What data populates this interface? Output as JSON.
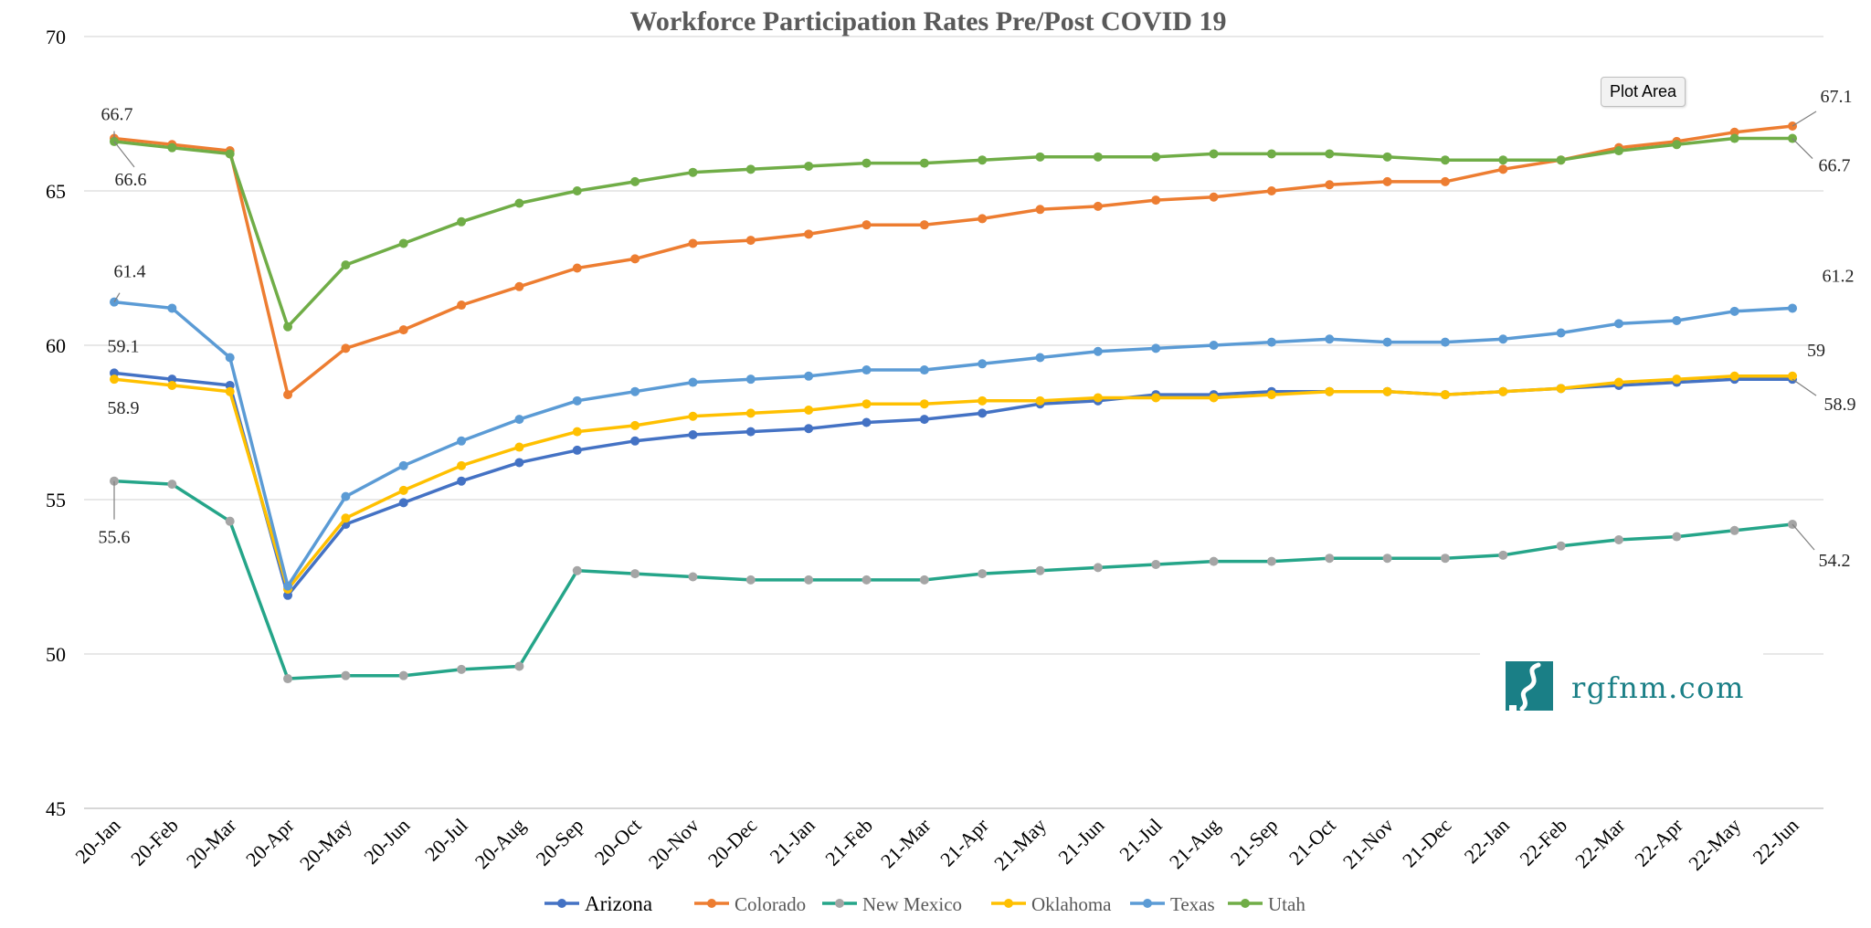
{
  "chart_data": {
    "type": "line",
    "title": "Workforce Participation Rates Pre/Post COVID 19",
    "xlabel": "",
    "ylabel": "",
    "ylim": [
      45,
      70
    ],
    "yticks": [
      "45",
      "50",
      "55",
      "60",
      "65",
      "70"
    ],
    "grid": true,
    "legend_position": "bottom",
    "categories": [
      "20-Jan",
      "20-Feb",
      "20-Mar",
      "20-Apr",
      "20-May",
      "20-Jun",
      "20-Jul",
      "20-Aug",
      "20-Sep",
      "20-Oct",
      "20-Nov",
      "20-Dec",
      "21-Jan",
      "21-Feb",
      "21-Mar",
      "21-Apr",
      "21-May",
      "21-Jun",
      "21-Jul",
      "21-Aug",
      "21-Sep",
      "21-Oct",
      "21-Nov",
      "21-Dec",
      "22-Jan",
      "22-Feb",
      "22-Mar",
      "22-Apr",
      "22-May",
      "22-Jun"
    ],
    "series": [
      {
        "name": "Arizona",
        "color": "#4472c4",
        "values": [
          59.1,
          58.9,
          58.7,
          51.9,
          54.2,
          54.9,
          55.6,
          56.2,
          56.6,
          56.9,
          57.1,
          57.2,
          57.3,
          57.5,
          57.6,
          57.8,
          58.1,
          58.2,
          58.4,
          58.4,
          58.5,
          58.5,
          58.5,
          58.4,
          58.5,
          58.6,
          58.7,
          58.8,
          58.9,
          58.9
        ]
      },
      {
        "name": "Colorado",
        "color": "#ed7d31",
        "values": [
          66.7,
          66.5,
          66.3,
          58.4,
          59.9,
          60.5,
          61.3,
          61.9,
          62.5,
          62.8,
          63.3,
          63.4,
          63.6,
          63.9,
          63.9,
          64.1,
          64.4,
          64.5,
          64.7,
          64.8,
          65.0,
          65.2,
          65.3,
          65.3,
          65.7,
          66.0,
          66.4,
          66.6,
          66.9,
          67.1
        ]
      },
      {
        "name": "New Mexico",
        "color": "#25a589",
        "marker": "#a5a5a5",
        "values": [
          55.6,
          55.5,
          54.3,
          49.2,
          49.3,
          49.3,
          49.5,
          49.6,
          52.7,
          52.6,
          52.5,
          52.4,
          52.4,
          52.4,
          52.4,
          52.6,
          52.7,
          52.8,
          52.9,
          53.0,
          53.0,
          53.1,
          53.1,
          53.1,
          53.2,
          53.5,
          53.7,
          53.8,
          54.0,
          54.2
        ]
      },
      {
        "name": "Oklahoma",
        "color": "#ffc000",
        "values": [
          58.9,
          58.7,
          58.5,
          52.1,
          54.4,
          55.3,
          56.1,
          56.7,
          57.2,
          57.4,
          57.7,
          57.8,
          57.9,
          58.1,
          58.1,
          58.2,
          58.2,
          58.3,
          58.3,
          58.3,
          58.4,
          58.5,
          58.5,
          58.4,
          58.5,
          58.6,
          58.8,
          58.9,
          59.0,
          59.0
        ]
      },
      {
        "name": "Texas",
        "color": "#5b9bd5",
        "values": [
          61.4,
          61.2,
          59.6,
          52.2,
          55.1,
          56.1,
          56.9,
          57.6,
          58.2,
          58.5,
          58.8,
          58.9,
          59.0,
          59.2,
          59.2,
          59.4,
          59.6,
          59.8,
          59.9,
          60.0,
          60.1,
          60.2,
          60.1,
          60.1,
          60.2,
          60.4,
          60.7,
          60.8,
          61.1,
          61.2
        ]
      },
      {
        "name": "Utah",
        "color": "#70ad47",
        "values": [
          66.6,
          66.4,
          66.2,
          60.6,
          62.6,
          63.3,
          64.0,
          64.6,
          65.0,
          65.3,
          65.6,
          65.7,
          65.8,
          65.9,
          65.9,
          66.0,
          66.1,
          66.1,
          66.1,
          66.2,
          66.2,
          66.2,
          66.1,
          66.0,
          66.0,
          66.0,
          66.3,
          66.5,
          66.7,
          66.7
        ]
      }
    ],
    "data_labels": [
      {
        "series": "Colorado",
        "index": 0,
        "text": "66.7"
      },
      {
        "series": "Utah",
        "index": 0,
        "text": "66.6"
      },
      {
        "series": "Texas",
        "index": 0,
        "text": "61.4"
      },
      {
        "series": "Arizona",
        "index": 0,
        "text": "59.1"
      },
      {
        "series": "Oklahoma",
        "index": 0,
        "text": "58.9"
      },
      {
        "series": "New Mexico",
        "index": 0,
        "text": "55.6"
      },
      {
        "series": "Colorado",
        "index": 29,
        "text": "67.1"
      },
      {
        "series": "Utah",
        "index": 29,
        "text": "66.7"
      },
      {
        "series": "Texas",
        "index": 29,
        "text": "61.2"
      },
      {
        "series": "Oklahoma",
        "index": 29,
        "text": "59"
      },
      {
        "series": "Arizona",
        "index": 29,
        "text": "58.9"
      },
      {
        "series": "New Mexico",
        "index": 29,
        "text": "54.2"
      }
    ]
  },
  "tooltip": {
    "text": "Plot Area"
  },
  "logo": {
    "text": "rgfnm.com",
    "icon": "river-logo-icon",
    "color": "#1a7f86"
  }
}
